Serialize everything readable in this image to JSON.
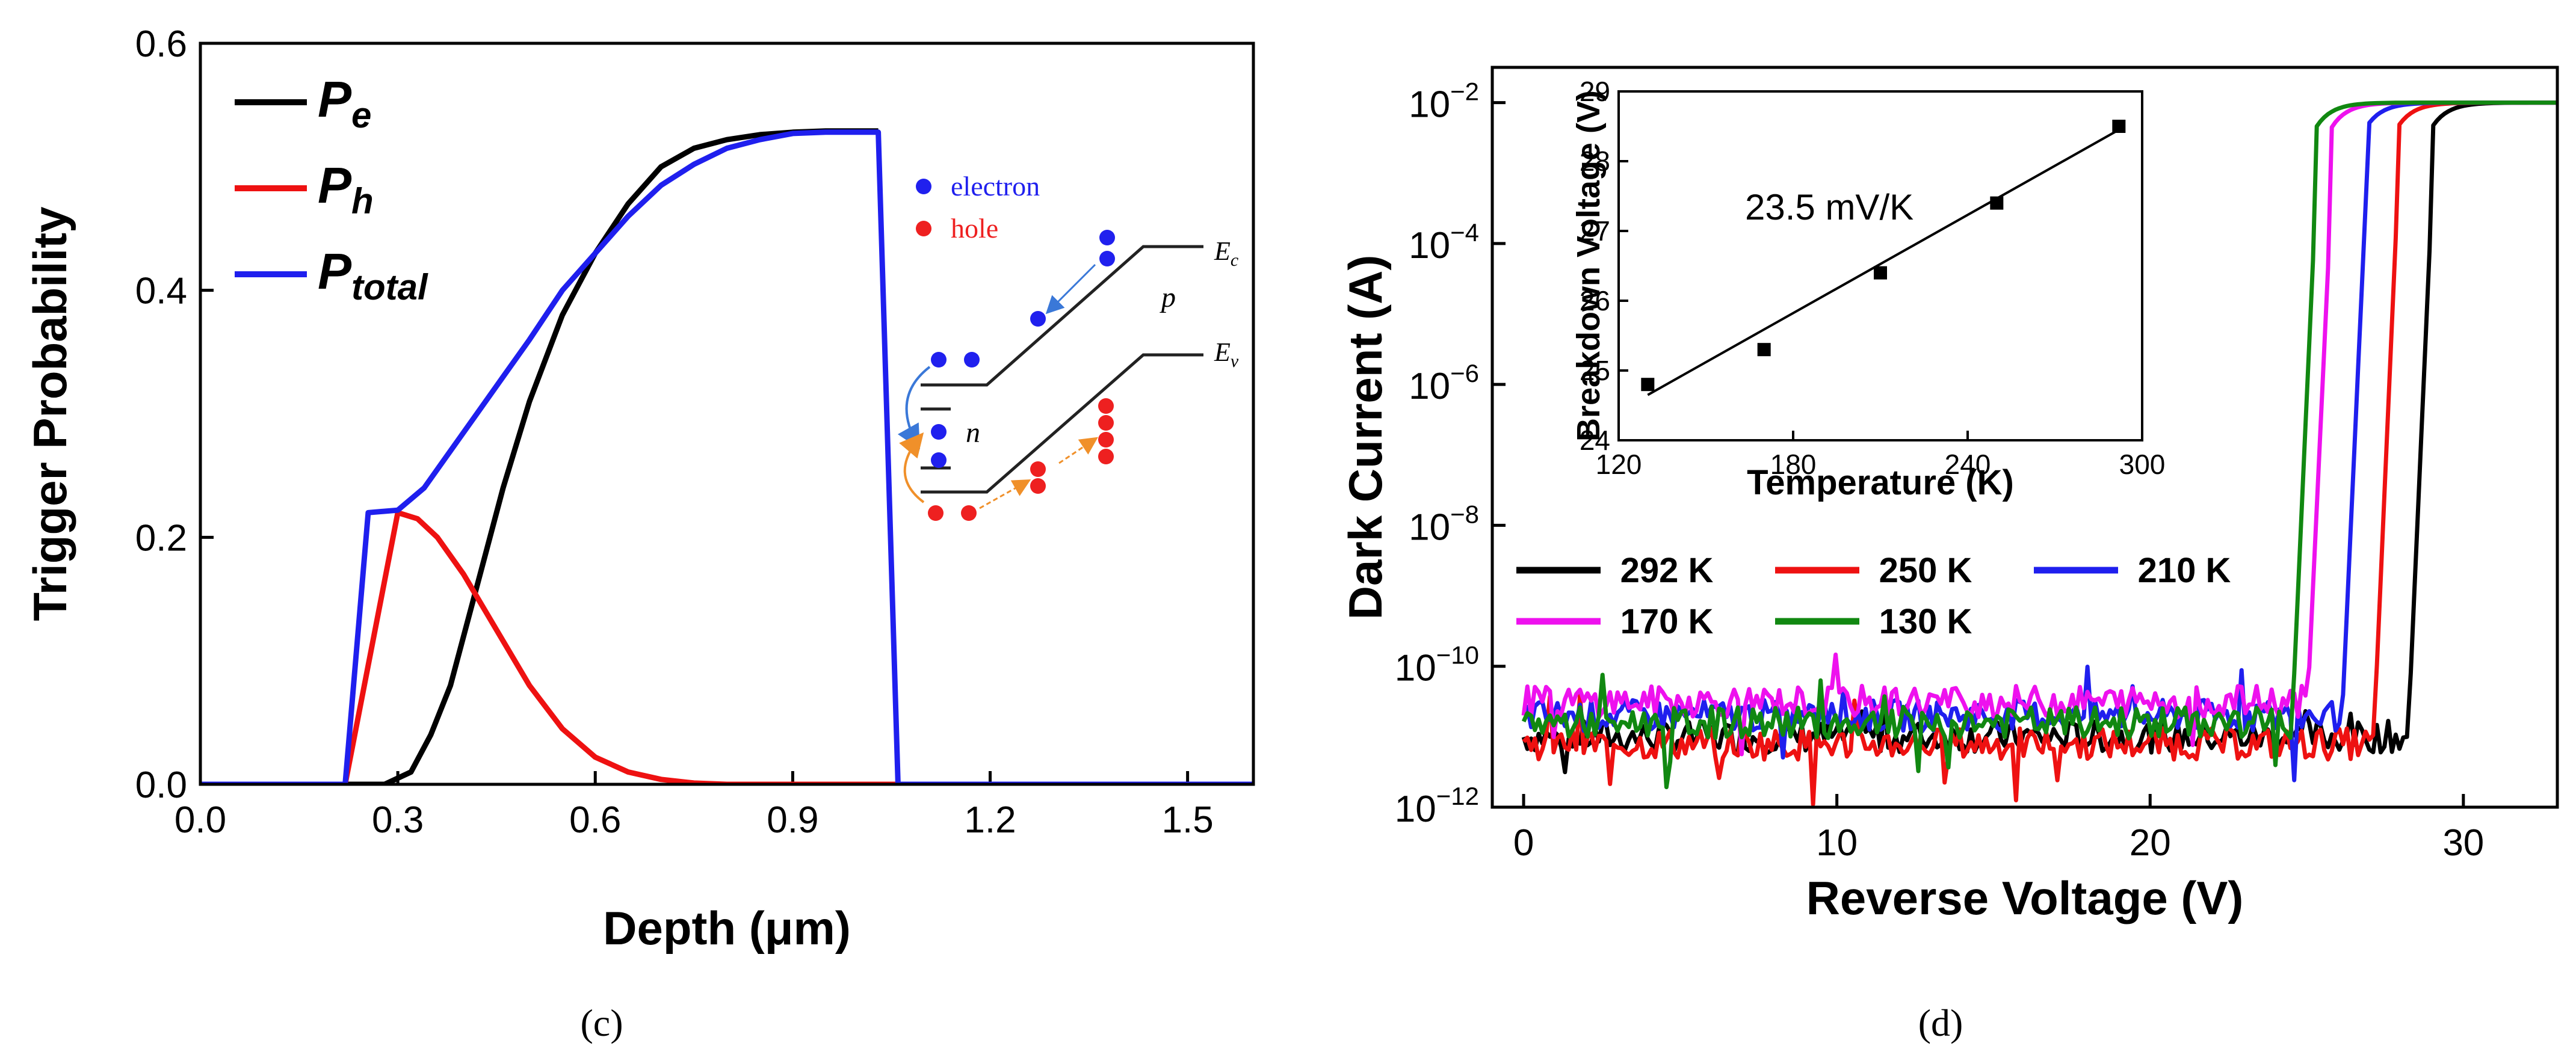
{
  "chart_data": [
    {
      "type": "line",
      "panel_label": "(c)",
      "xlabel": "Depth (μm)",
      "ylabel": "Trigger Probability",
      "xlim": [
        0,
        1.6
      ],
      "ylim": [
        0,
        0.6
      ],
      "xticks": [
        "0.0",
        "0.3",
        "0.6",
        "0.9",
        "1.2",
        "1.5"
      ],
      "yticks": [
        "0.0",
        "0.2",
        "0.4",
        "0.6"
      ],
      "legend": [
        {
          "base": "P",
          "sub": "e",
          "color": "#000000"
        },
        {
          "base": "P",
          "sub": "h",
          "color": "#ee1111"
        },
        {
          "base": "P",
          "sub": "total",
          "color": "#1f1fee"
        }
      ],
      "series": [
        {
          "name": "Pe",
          "color": "#000000",
          "x": [
            0,
            0.28,
            0.32,
            0.35,
            0.38,
            0.42,
            0.46,
            0.5,
            0.55,
            0.6,
            0.65,
            0.7,
            0.75,
            0.8,
            0.85,
            0.9,
            0.95,
            1.0,
            1.03
          ],
          "y": [
            0,
            0,
            0.01,
            0.04,
            0.08,
            0.16,
            0.24,
            0.31,
            0.38,
            0.43,
            0.47,
            0.5,
            0.515,
            0.522,
            0.526,
            0.528,
            0.529,
            0.529,
            0.529
          ]
        },
        {
          "name": "Ph",
          "color": "#ee1111",
          "x": [
            0,
            0.22,
            0.3,
            0.33,
            0.36,
            0.4,
            0.45,
            0.5,
            0.55,
            0.6,
            0.65,
            0.7,
            0.75,
            0.8,
            0.9,
            1.0,
            1.6
          ],
          "y": [
            0,
            0,
            0.22,
            0.215,
            0.2,
            0.17,
            0.125,
            0.08,
            0.045,
            0.022,
            0.01,
            0.004,
            0.001,
            0,
            0,
            0,
            0
          ]
        },
        {
          "name": "Ptotal",
          "color": "#1f1fee",
          "x": [
            0,
            0.22,
            0.255,
            0.3,
            0.34,
            0.38,
            0.42,
            0.46,
            0.5,
            0.55,
            0.6,
            0.65,
            0.7,
            0.75,
            0.8,
            0.85,
            0.9,
            0.95,
            1.03,
            1.06,
            1.6
          ],
          "y": [
            0,
            0,
            0.22,
            0.222,
            0.24,
            0.27,
            0.3,
            0.33,
            0.36,
            0.4,
            0.43,
            0.46,
            0.485,
            0.502,
            0.515,
            0.522,
            0.527,
            0.528,
            0.528,
            0,
            0
          ]
        }
      ],
      "inset": {
        "legend_electron": "electron",
        "legend_hole": "hole",
        "label_ec": "E",
        "label_ec_sub": "c",
        "label_ev": "E",
        "label_ev_sub": "v",
        "label_p": "p",
        "label_n": "n",
        "electron_color": "#2020ee",
        "hole_color": "#ee2020"
      }
    },
    {
      "type": "line",
      "panel_label": "(d)",
      "xlabel": "Reverse Voltage (V)",
      "ylabel": "Dark Current (A)",
      "xscale": "linear",
      "yscale": "log",
      "xlim": [
        -1,
        33
      ],
      "ylim_log10": [
        -12,
        -1.5
      ],
      "xticks": [
        "0",
        "10",
        "20",
        "30"
      ],
      "ytick_base": "10",
      "ytick_exponents": [
        "-12",
        "-10",
        "-8",
        "-6",
        "-4",
        "-2"
      ],
      "series": [
        {
          "name": "292 K",
          "color": "#000000",
          "breakdown": 28.5,
          "floor_log10": -11.0
        },
        {
          "name": "250 K",
          "color": "#ee1111",
          "breakdown": 27.4,
          "floor_log10": -11.1
        },
        {
          "name": "210 K",
          "color": "#1f1fee",
          "breakdown": 26.4,
          "floor_log10": -10.7
        },
        {
          "name": "170 K",
          "color": "#ee11ee",
          "breakdown": 25.3,
          "floor_log10": -10.5
        },
        {
          "name": "130 K",
          "color": "#118811",
          "breakdown": 24.8,
          "floor_log10": -10.8
        }
      ],
      "inset": {
        "type": "scatter",
        "xlabel": "Temperature (K)",
        "ylabel": "Breakdown Voltage (V)",
        "xlim": [
          120,
          300
        ],
        "ylim": [
          24,
          29
        ],
        "xticks": [
          "120",
          "180",
          "240",
          "300"
        ],
        "yticks": [
          "24",
          "25",
          "26",
          "27",
          "28",
          "29"
        ],
        "points": [
          [
            130,
            24.8
          ],
          [
            170,
            25.3
          ],
          [
            210,
            26.4
          ],
          [
            250,
            27.4
          ],
          [
            292,
            28.5
          ]
        ],
        "fit": [
          [
            130,
            24.65
          ],
          [
            292,
            28.45
          ]
        ],
        "annotation": "23.5 mV/K"
      }
    }
  ]
}
